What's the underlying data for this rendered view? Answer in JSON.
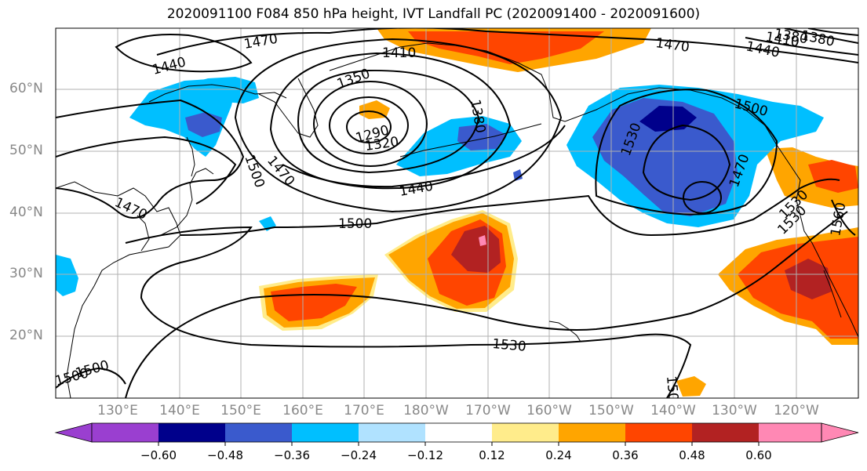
{
  "title": "2020091100 F084 850 hPa height, IVT Landfall PC (2020091400 - 2020091600)",
  "lat_labels": [
    "60°N",
    "50°N",
    "40°N",
    "30°N",
    "20°N"
  ],
  "lon_labels": [
    "130°E",
    "140°E",
    "150°E",
    "160°E",
    "170°E",
    "180°W",
    "170°W",
    "160°W",
    "150°W",
    "140°W",
    "130°W",
    "120°W"
  ],
  "contour_labels": [
    "1470",
    "1440",
    "1410",
    "1380",
    "1350",
    "1320",
    "1290",
    "1380",
    "1470",
    "1410",
    "1440",
    "1380",
    "1470",
    "1500",
    "1530",
    "1470",
    "1500",
    "1440",
    "1470",
    "1500",
    "1530",
    "1560",
    "1530",
    "1500",
    "1500",
    "1530",
    "150"
  ],
  "colorbar": {
    "colors": [
      "#9a3fd0",
      "#00008b",
      "#3a5acd",
      "#00bfff",
      "#b0e2ff",
      "#ffffff",
      "#ffec8b",
      "#ffa500",
      "#ff4500",
      "#b22222",
      "#ff88b4"
    ],
    "tick_labels": [
      "−0.60",
      "−0.48",
      "−0.36",
      "−0.24",
      "−0.12",
      "0.12",
      "0.24",
      "0.36",
      "0.48",
      "0.60"
    ]
  }
}
